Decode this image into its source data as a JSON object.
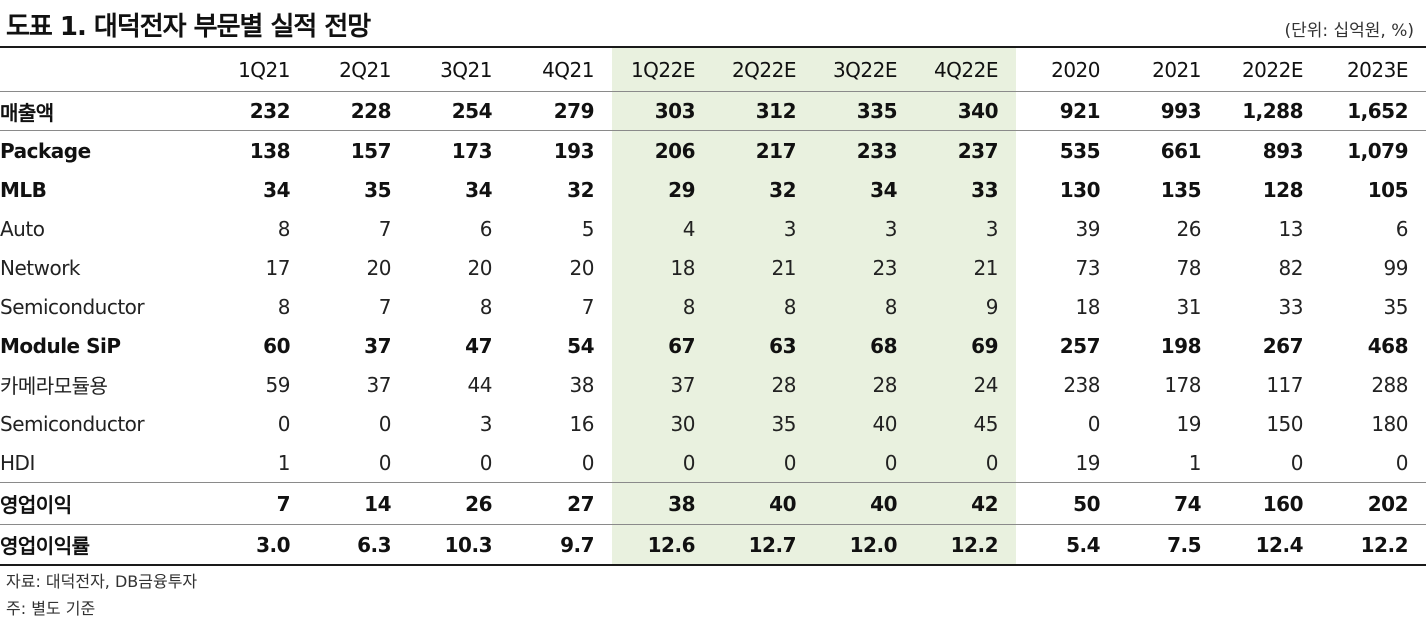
{
  "title": "도표 1. 대덕전자 부문별 실적 전망",
  "unit": "(단위: 십억원, %)",
  "columns": [
    "1Q21",
    "2Q21",
    "3Q21",
    "4Q21",
    "1Q22E",
    "2Q22E",
    "3Q22E",
    "4Q22E",
    "2020",
    "2021",
    "2022E",
    "2023E"
  ],
  "highlight_color": "#e9f1df",
  "rows": [
    {
      "label": "매출액",
      "values": [
        "232",
        "228",
        "254",
        "279",
        "303",
        "312",
        "335",
        "340",
        "921",
        "993",
        "1,288",
        "1,652"
      ]
    },
    {
      "label": "Package",
      "values": [
        "138",
        "157",
        "173",
        "193",
        "206",
        "217",
        "233",
        "237",
        "535",
        "661",
        "893",
        "1,079"
      ]
    },
    {
      "label": "MLB",
      "values": [
        "34",
        "35",
        "34",
        "32",
        "29",
        "32",
        "34",
        "33",
        "130",
        "135",
        "128",
        "105"
      ]
    },
    {
      "label": "Auto",
      "values": [
        "8",
        "7",
        "6",
        "5",
        "4",
        "3",
        "3",
        "3",
        "39",
        "26",
        "13",
        "6"
      ]
    },
    {
      "label": "Network",
      "values": [
        "17",
        "20",
        "20",
        "20",
        "18",
        "21",
        "23",
        "21",
        "73",
        "78",
        "82",
        "99"
      ]
    },
    {
      "label": "Semiconductor",
      "values": [
        "8",
        "7",
        "8",
        "7",
        "8",
        "8",
        "8",
        "9",
        "18",
        "31",
        "33",
        "35"
      ]
    },
    {
      "label": "Module SiP",
      "values": [
        "60",
        "37",
        "47",
        "54",
        "67",
        "63",
        "68",
        "69",
        "257",
        "198",
        "267",
        "468"
      ]
    },
    {
      "label": "카메라모듈용",
      "values": [
        "59",
        "37",
        "44",
        "38",
        "37",
        "28",
        "28",
        "24",
        "238",
        "178",
        "117",
        "288"
      ]
    },
    {
      "label": "Semiconductor",
      "values": [
        "0",
        "0",
        "3",
        "16",
        "30",
        "35",
        "40",
        "45",
        "0",
        "19",
        "150",
        "180"
      ]
    },
    {
      "label": "HDI",
      "values": [
        "1",
        "0",
        "0",
        "0",
        "0",
        "0",
        "0",
        "0",
        "19",
        "1",
        "0",
        "0"
      ]
    },
    {
      "label": "영업이익",
      "values": [
        "7",
        "14",
        "26",
        "27",
        "38",
        "40",
        "40",
        "42",
        "50",
        "74",
        "160",
        "202"
      ]
    },
    {
      "label": "영업이익률",
      "values": [
        "3.0",
        "6.3",
        "10.3",
        "9.7",
        "12.6",
        "12.7",
        "12.0",
        "12.2",
        "5.4",
        "7.5",
        "12.4",
        "12.2"
      ]
    }
  ],
  "footnotes": {
    "source": "자료: 대덕전자, DB금융투자",
    "note": "주: 별도 기준"
  }
}
